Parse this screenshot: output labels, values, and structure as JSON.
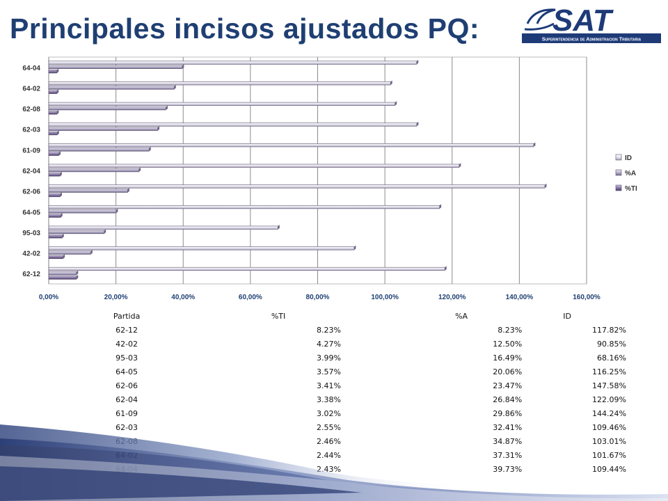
{
  "header": {
    "title": "Principales incisos ajustados PQ:"
  },
  "logo": {
    "text": "SAT",
    "subtitle": "Superintendencia de Administracion Tributaria"
  },
  "colors": {
    "ID": "#e4e1ec",
    "A": "#b9b2cc",
    "TI": "#8877a6",
    "title": "#1f3f73",
    "logo": "#1e3b78"
  },
  "chart_data": {
    "type": "bar",
    "orientation": "horizontal",
    "categories": [
      "62-12",
      "42-02",
      "95-03",
      "64-05",
      "62-06",
      "62-04",
      "61-09",
      "62-03",
      "62-08",
      "64-02",
      "64-04"
    ],
    "series": [
      {
        "name": "%TI",
        "values": [
          8.23,
          4.27,
          3.99,
          3.57,
          3.41,
          3.38,
          3.02,
          2.55,
          2.46,
          2.44,
          2.43
        ]
      },
      {
        "name": "%A",
        "values": [
          8.23,
          12.5,
          16.49,
          20.06,
          23.47,
          26.84,
          29.86,
          32.41,
          34.87,
          37.31,
          39.73
        ]
      },
      {
        "name": "ID",
        "values": [
          117.82,
          90.85,
          68.16,
          116.25,
          147.58,
          122.09,
          144.24,
          109.46,
          103.01,
          101.67,
          109.44
        ]
      }
    ],
    "xticks": [
      "0,00%",
      "20,00%",
      "40,00%",
      "60,00%",
      "80,00%",
      "100,00%",
      "120,00%",
      "140,00%",
      "160,00%"
    ],
    "xlim": [
      0,
      160
    ],
    "grid": true,
    "legend_position": "right",
    "legend_order": [
      "ID",
      "%A",
      "%TI"
    ]
  },
  "table": {
    "headers": [
      "Partida",
      "%TI",
      "%A",
      "ID"
    ],
    "rows": [
      [
        "62-12",
        "8.23%",
        "8.23%",
        "117.82%"
      ],
      [
        "42-02",
        "4.27%",
        "12.50%",
        "90.85%"
      ],
      [
        "95-03",
        "3.99%",
        "16.49%",
        "68.16%"
      ],
      [
        "64-05",
        "3.57%",
        "20.06%",
        "116.25%"
      ],
      [
        "62-06",
        "3.41%",
        "23.47%",
        "147.58%"
      ],
      [
        "62-04",
        "3.38%",
        "26.84%",
        "122.09%"
      ],
      [
        "61-09",
        "3.02%",
        "29.86%",
        "144.24%"
      ],
      [
        "62-03",
        "2.55%",
        "32.41%",
        "109.46%"
      ],
      [
        "62-08",
        "2.46%",
        "34.87%",
        "103.01%"
      ],
      [
        "64-02",
        "2.44%",
        "37.31%",
        "101.67%"
      ],
      [
        "64-04",
        "2.43%",
        "39.73%",
        "109.44%"
      ]
    ]
  }
}
